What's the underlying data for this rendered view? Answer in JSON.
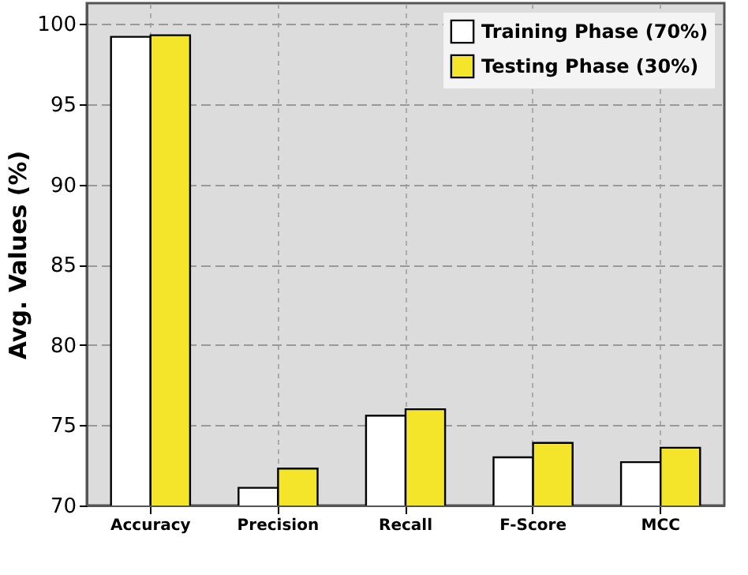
{
  "chart_data": {
    "type": "bar",
    "ylabel": "Avg. Values (%)",
    "categories": [
      "Accuracy",
      "Precision",
      "Recall",
      "F-Score",
      "MCC"
    ],
    "series": [
      {
        "name": "Training Phase (70%)",
        "color": "#ffffff",
        "values": [
          99.2,
          71.1,
          75.6,
          73.0,
          72.7
        ]
      },
      {
        "name": "Testing Phase (30%)",
        "color": "#f5e52a",
        "values": [
          99.3,
          72.3,
          76.0,
          73.9,
          73.6
        ]
      }
    ],
    "ylim": [
      70,
      101.3
    ],
    "yticks": [
      70,
      75,
      80,
      85,
      90,
      95,
      100
    ],
    "grid": true,
    "legend": "top right"
  }
}
